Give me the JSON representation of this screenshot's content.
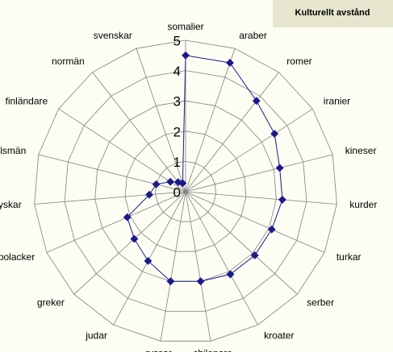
{
  "chart_data": {
    "type": "radar",
    "title": "Kulturellt avstånd",
    "categories": [
      "somalier",
      "araber",
      "romer",
      "iranier",
      "kineser",
      "kurder",
      "turkar",
      "serber",
      "kroater",
      "chilenare",
      "ryssar",
      "judar",
      "greker",
      "polacker",
      "tyskar",
      "engelsmän",
      "finländare",
      "normän",
      "svenskar"
    ],
    "values": [
      4.5,
      4.5,
      3.8,
      3.5,
      3.2,
      3.2,
      3.1,
      3.1,
      3.1,
      3.0,
      3.0,
      2.6,
      2.3,
      2.1,
      1.2,
      1.0,
      0.6,
      0.4,
      0.3
    ],
    "color": "#1a1a8c",
    "rlim": [
      0,
      5
    ],
    "rticks": [
      0,
      1,
      2,
      3,
      4,
      5
    ],
    "grid": true
  }
}
